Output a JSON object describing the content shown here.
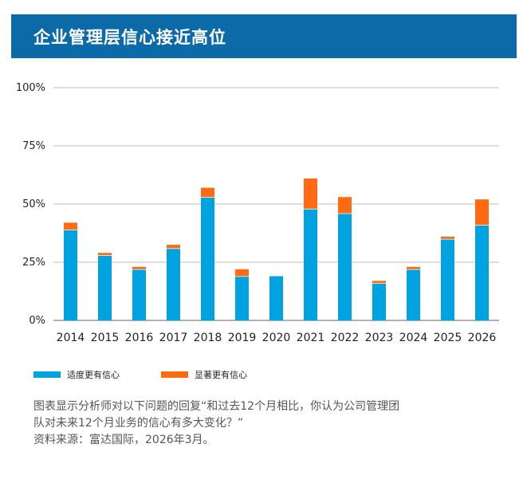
{
  "header": {
    "title": "企业管理层信心接近高位"
  },
  "chart_data": {
    "type": "bar",
    "stacked": true,
    "categories": [
      "2014",
      "2015",
      "2016",
      "2017",
      "2018",
      "2019",
      "2020",
      "2021",
      "2022",
      "2023",
      "2024",
      "2025",
      "2026"
    ],
    "series": [
      {
        "name": "适度更有信心",
        "color": "#00a3e0",
        "values": [
          39,
          28,
          22,
          31,
          53,
          19,
          19,
          48,
          46,
          16,
          22,
          35,
          41
        ]
      },
      {
        "name": "显著更有信心",
        "color": "#ff6a13",
        "values": [
          3,
          1,
          1,
          1.5,
          4,
          3,
          0,
          13,
          7,
          1,
          1,
          1,
          11
        ]
      }
    ],
    "ylim": [
      0,
      100
    ],
    "yticks": [
      "0%",
      "25%",
      "50%",
      "75%",
      "100%"
    ],
    "grid": true,
    "legend_position": "bottom"
  },
  "notes": {
    "line1": "图表显示分析师对以下问题的回复“和过去12个月相比，你认为公司管理团",
    "line2": "队对未来12个月业务的信心有多大变化？”",
    "line3": "资料来源：富达国际，2026年3月。"
  }
}
